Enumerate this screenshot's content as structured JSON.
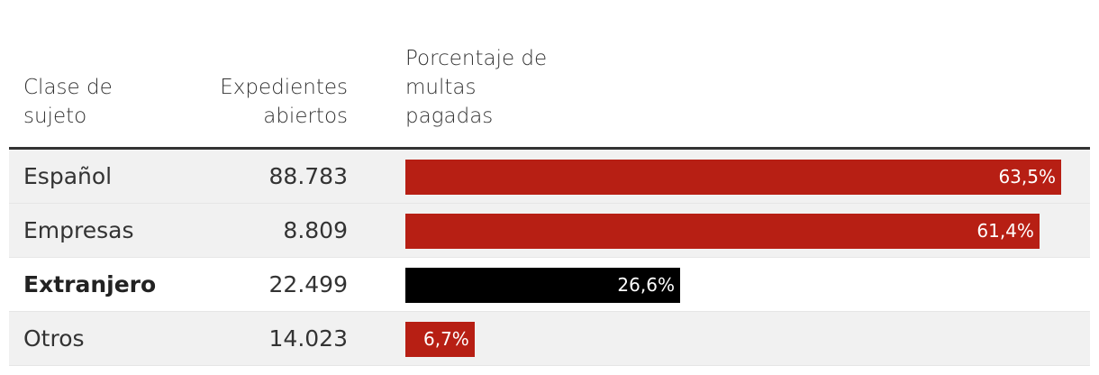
{
  "chart_data": {
    "type": "table",
    "columns": [
      "Clase de sujeto",
      "Expedientes abiertos",
      "Porcentaje de multas pagadas"
    ],
    "rows": [
      {
        "category": "Español",
        "expedientes": "88.783",
        "percent": 63.5,
        "percent_label": "63,5%",
        "color": "#b71f14",
        "highlight": false
      },
      {
        "category": "Empresas",
        "expedientes": "8.809",
        "percent": 61.4,
        "percent_label": "61,4%",
        "color": "#b71f14",
        "highlight": false
      },
      {
        "category": "Extranjero",
        "expedientes": "22.499",
        "percent": 26.6,
        "percent_label": "26,6%",
        "color": "#000000",
        "highlight": true
      },
      {
        "category": "Otros",
        "expedientes": "14.023",
        "percent": 6.7,
        "percent_label": "6,7%",
        "color": "#b71f14",
        "highlight": false
      }
    ],
    "bar_range": [
      0,
      63.5
    ]
  }
}
